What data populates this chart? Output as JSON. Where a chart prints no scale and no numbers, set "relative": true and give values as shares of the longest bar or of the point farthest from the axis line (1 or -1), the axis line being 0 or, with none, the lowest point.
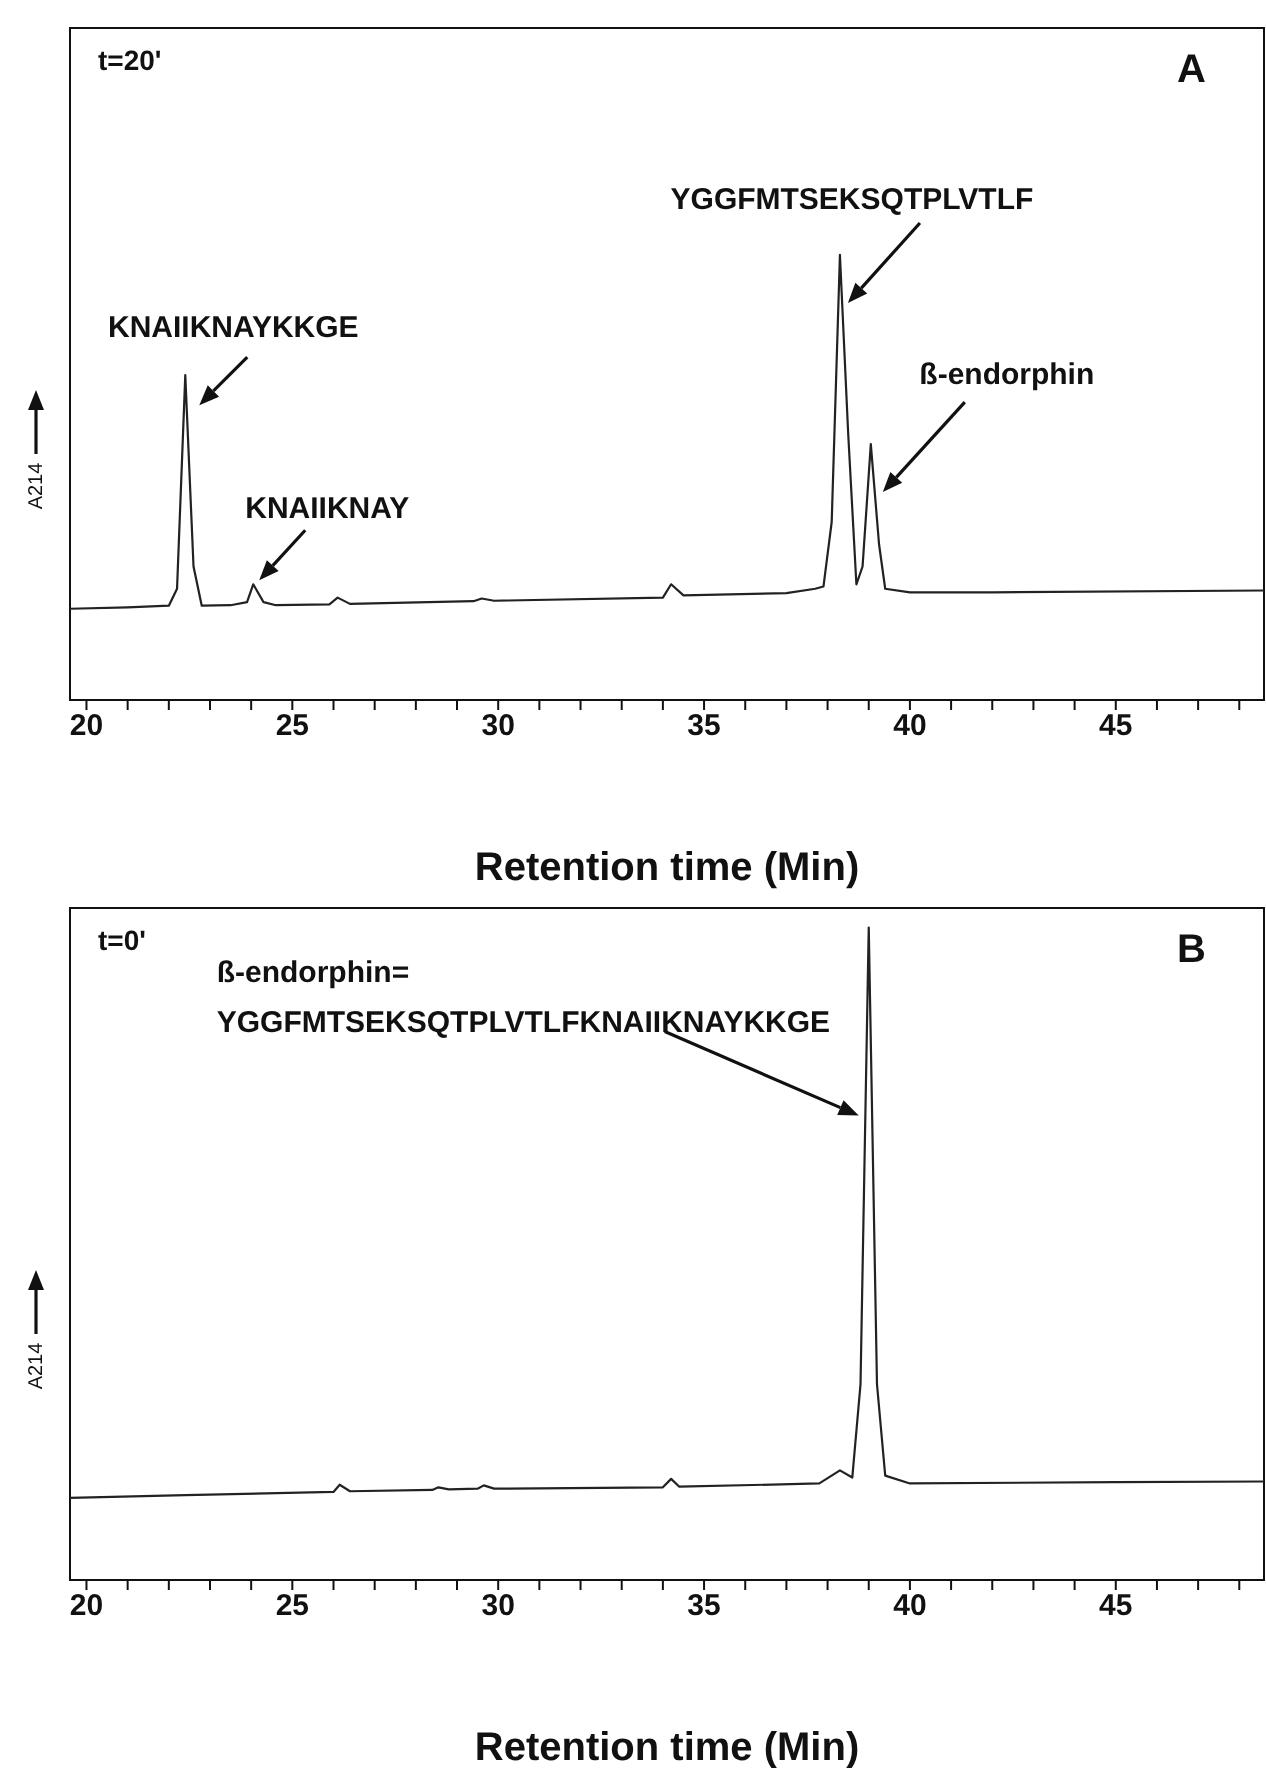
{
  "chart_data": [
    {
      "type": "line",
      "xlabel": "Retention time (Min)",
      "ylabel": "A214",
      "relative": true,
      "color": "#222222",
      "marker": "none",
      "xlim": [
        19.6,
        48.6
      ],
      "xticks": [
        {
          "value": 20,
          "label": "20"
        },
        {
          "value": 21,
          "label": null
        },
        {
          "value": 22,
          "label": null
        },
        {
          "value": 23,
          "label": null
        },
        {
          "value": 24,
          "label": null
        },
        {
          "value": 25,
          "label": "25"
        },
        {
          "value": 26,
          "label": null
        },
        {
          "value": 27,
          "label": null
        },
        {
          "value": 28,
          "label": null
        },
        {
          "value": 29,
          "label": null
        },
        {
          "value": 30,
          "label": "30"
        },
        {
          "value": 31,
          "label": null
        },
        {
          "value": 32,
          "label": null
        },
        {
          "value": 33,
          "label": null
        },
        {
          "value": 34,
          "label": null
        },
        {
          "value": 35,
          "label": "35"
        },
        {
          "value": 36,
          "label": null
        },
        {
          "value": 37,
          "label": null
        },
        {
          "value": 38,
          "label": null
        },
        {
          "value": 39,
          "label": null
        },
        {
          "value": 40,
          "label": "40"
        },
        {
          "value": 41,
          "label": null
        },
        {
          "value": 42,
          "label": null
        },
        {
          "value": 43,
          "label": null
        },
        {
          "value": 44,
          "label": null
        },
        {
          "value": 45,
          "label": "45"
        },
        {
          "value": 46,
          "label": null
        },
        {
          "value": 47,
          "label": null
        },
        {
          "value": 48,
          "label": null
        }
      ],
      "x": [
        19.6,
        21,
        22.0,
        22.2,
        22.4,
        22.6,
        22.8,
        23.5,
        23.9,
        24.05,
        24.3,
        24.6,
        25.9,
        26.1,
        26.4,
        29.4,
        29.6,
        29.9,
        34.0,
        34.2,
        34.5,
        37.0,
        37.7,
        37.9,
        38.1,
        38.3,
        38.5,
        38.7,
        38.85,
        39.05,
        39.25,
        39.4,
        40,
        42,
        48.6
      ],
      "values": [
        0.205,
        0.208,
        0.212,
        0.25,
        0.73,
        0.3,
        0.212,
        0.213,
        0.22,
        0.26,
        0.22,
        0.213,
        0.215,
        0.23,
        0.216,
        0.222,
        0.228,
        0.223,
        0.23,
        0.26,
        0.235,
        0.24,
        0.25,
        0.255,
        0.4,
        1,
        0.6,
        0.26,
        0.3,
        0.575,
        0.35,
        0.25,
        0.242,
        0.242,
        0.246
      ],
      "annotations": [
        "t=20'",
        "A",
        {
          "text": "KNAIIKNAYKKGE",
          "x": 22.4,
          "y": 0.73
        },
        {
          "text": "KNAIIKNAY",
          "x": 24.05,
          "y": 0.26
        },
        {
          "text": "YGGFMTSEKSQTPLVTLF",
          "x": 38.3,
          "y": 1
        },
        {
          "text": "ß-endorphin",
          "x": 39.05,
          "y": 0.575
        }
      ]
    },
    {
      "type": "line",
      "xlabel": "Retention time (Min)",
      "ylabel": "A214",
      "relative": true,
      "color": "#222222",
      "marker": "none",
      "xlim": [
        19.6,
        48.6
      ],
      "xticks": [
        {
          "value": 20,
          "label": "20"
        },
        {
          "value": 21,
          "label": null
        },
        {
          "value": 22,
          "label": null
        },
        {
          "value": 23,
          "label": null
        },
        {
          "value": 24,
          "label": null
        },
        {
          "value": 25,
          "label": "25"
        },
        {
          "value": 26,
          "label": null
        },
        {
          "value": 27,
          "label": null
        },
        {
          "value": 28,
          "label": null
        },
        {
          "value": 29,
          "label": null
        },
        {
          "value": 30,
          "label": "30"
        },
        {
          "value": 31,
          "label": null
        },
        {
          "value": 32,
          "label": null
        },
        {
          "value": 33,
          "label": null
        },
        {
          "value": 34,
          "label": null
        },
        {
          "value": 35,
          "label": "35"
        },
        {
          "value": 36,
          "label": null
        },
        {
          "value": 37,
          "label": null
        },
        {
          "value": 38,
          "label": null
        },
        {
          "value": 39,
          "label": null
        },
        {
          "value": 40,
          "label": "40"
        },
        {
          "value": 41,
          "label": null
        },
        {
          "value": 42,
          "label": null
        },
        {
          "value": 43,
          "label": null
        },
        {
          "value": 44,
          "label": null
        },
        {
          "value": 45,
          "label": "45"
        },
        {
          "value": 46,
          "label": null
        },
        {
          "value": 47,
          "label": null
        },
        {
          "value": 48,
          "label": null
        }
      ],
      "x": [
        19.6,
        22.4,
        26.0,
        26.15,
        26.4,
        28.4,
        28.55,
        28.8,
        29.5,
        29.65,
        29.9,
        34.0,
        34.2,
        34.4,
        37.8,
        38.3,
        38.6,
        38.8,
        39.0,
        39.2,
        39.4,
        40,
        45,
        48.6
      ],
      "values": [
        0.126,
        0.13,
        0.135,
        0.146,
        0.136,
        0.138,
        0.142,
        0.139,
        0.14,
        0.145,
        0.14,
        0.142,
        0.155,
        0.143,
        0.148,
        0.168,
        0.157,
        0.3,
        1,
        0.3,
        0.16,
        0.148,
        0.15,
        0.151
      ],
      "annotations": [
        "t=0'",
        "B",
        {
          "text": "ß-endorphin=\nYGGFMTSEKSQTPLVTLFKNAIIKNAYKKGE",
          "x": 39.0,
          "y": 1
        }
      ]
    }
  ]
}
